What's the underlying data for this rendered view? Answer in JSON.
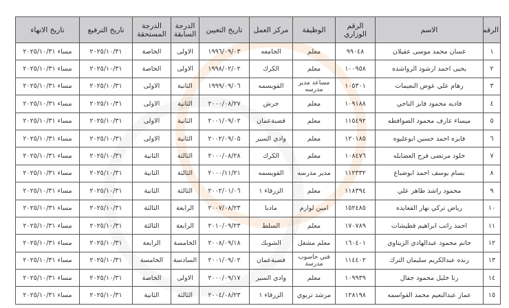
{
  "headers": [
    "الرقم",
    "الاسم",
    "الرقم الوزاري",
    "الوظيفة",
    "مركز العمل",
    "تاريخ التعيين",
    "الدرجة السابقة",
    "الدرجة المستحقة",
    "تاريخ الترفيع",
    "تاريخ الانهاء"
  ],
  "rows": [
    [
      "١",
      "غسان محمد موسى عقيلان",
      "٩٩٠٤٨",
      "معلم",
      "الجامعه",
      "١٩٩٦/٠٩/٠٣",
      "الاولى",
      "الخاصة",
      "٢٠٢٥/١٠/٣١",
      "مساء ٢٠٢٥/١٠/٣١"
    ],
    [
      "٢",
      "يحيى احمد ارشود الرواشده",
      "١٠٠٩٥٨",
      "معلم",
      "الكرك",
      "١٩٩٨/٠٢/٠٢",
      "الاولى",
      "الخاصة",
      "٢٠٢٥/١٠/٣١",
      "مساء ٢٠٢٥/١٠/٣١"
    ],
    [
      "٣",
      "رهام علي عوض النعيمات",
      "١٠٥٣٠١",
      "مساعد مدير مدرسه",
      "القويسمه",
      "١٩٩٩/٠٩/٠٦",
      "الثانية",
      "الاولى",
      "٢٠٢٥/١٠/٣١",
      "مساء ٢٠٢٥/١٠/٣١"
    ],
    [
      "٤",
      "فاديه محمود فايز الناجي",
      "١٠٩١٨٨",
      "معلم",
      "جرش",
      "٢٠٠٠/٠٨/٢٧",
      "الثانية",
      "الاولى",
      "٢٠٢٥/١٠/٣١",
      "مساء ٢٠٢٥/١٠/٣١"
    ],
    [
      "٥",
      "ميساء عارف محمود الصوافطه",
      "١١٥٤٩٢",
      "معلم",
      "قصبةعمان",
      "٢٠٠١/٠٩/٠٢",
      "الثانية",
      "الاولى",
      "٢٠٢٥/١٠/٣١",
      "مساء ٢٠٢٥/١٠/٣١"
    ],
    [
      "٦",
      "فايزه احمد حسين ابوعليوه",
      "١٢٠١٨٥",
      "معلم",
      "وادي السير",
      "٢٠٠٢/٠٩/٠٥",
      "الثانية",
      "الاولى",
      "٢٠٢٥/١٠/٣١",
      "مساء ٢٠٢٥/١٠/٣١"
    ],
    [
      "٧",
      "خلود مرتضى فرج العضايله",
      "١٠٨٤٧٦",
      "معلم",
      "الكرك",
      "٢٠٠٠/٠٨/٢٨",
      "الثالثة",
      "الثانية",
      "٢٠٢٥/١٠/٣١",
      "مساء ٢٠٢٥/١٠/٣١"
    ],
    [
      "٨",
      "بسام يوسف احمد ابوضباع",
      "١١٢٣٣٢",
      "مدير مدرسه",
      "القويسمه",
      "٢٠٠٠/١١/٢١",
      "الثالثة",
      "الثانية",
      "٢٠٢٥/١٠/٣١",
      "مساء ٢٠٢٥/١٠/٣١"
    ],
    [
      "٩",
      "محمود راشد طاهر علي",
      "١١٨٣٩٤",
      "معلم",
      "الزرقاء ١",
      "٢٠٠٢/٠١/٠٦",
      "الثالثة",
      "الثانية",
      "٢٠٢٥/١٠/٣١",
      "مساء ٢٠٢٥/١٠/٣١"
    ],
    [
      "١٠",
      "رياض تركي نهار القعايده",
      "١٥٢٤٨٥",
      "امين لوازم",
      "مادبا",
      "٢٠٠٧/٠٨/٢٣",
      "الرابعة",
      "الثالثة",
      "٢٠٢٥/١٠/٣١",
      "مساء ٢٠٢٥/١٠/٣١"
    ],
    [
      "١١",
      "احمد راتب ابراهيم قطيشات",
      "١٧٠٧٨٩",
      "معلم",
      "السلط",
      "٢٠١٠/٠٩/٢٣",
      "الرابعة",
      "الثالثة",
      "٢٠٢٥/١٠/٣١",
      "مساء ٢٠٢٥/١٠/٣١"
    ],
    [
      "١٢",
      "حاتم محمود عبدالهادي الزيتاوي",
      "١٦٠٤٠١",
      "معلم مشغل",
      "الشوبك",
      "٢٠٠٨/٠٩/١٨",
      "الخامسة",
      "الرابعة",
      "٢٠٢٥/١٠/٣١",
      "مساء ٢٠٢٥/١٠/٣١"
    ],
    [
      "١٣",
      "رنده عبدالكريم سليمان الترك",
      "١١٤٤٠٢",
      "فني حاسوب مدرسة",
      "قصبةعمان",
      "٢٠٠١/٠٩/٠٢",
      "السادسة",
      "الخامسة",
      "٢٠٢٥/١٠/٣١",
      "مساء ٢٠٢٥/١٠/٣١"
    ],
    [
      "١٤",
      "رنا خليل محمود جفال",
      "١٠٩٩٣٩",
      "معلم",
      "وادي السير",
      "٢٠٠٠/٠٩/١٧",
      "الاولى",
      "الخاصة",
      "٢٠٢٥/١٠/٣١",
      "مساء ٢٠٢٥/١٠/٣١"
    ],
    [
      "١٥",
      "عمار عبدالنعيم محمد القواسمه",
      "١٢٨١٩٨",
      "مرشد تربوي",
      "الزرقاء ١",
      "٢٠٠٤/٠٨/٢٣",
      "الثالثة",
      "الثانية",
      "٢٠٢٥/١٠/٣١",
      "مساء ٢٠٢٥/١٠/٣١"
    ]
  ],
  "colors": {
    "header_bg": "#cfcfd2",
    "border": "#555555",
    "watermark_orange": "#f3b27a",
    "watermark_gray": "#d9d9d9"
  }
}
